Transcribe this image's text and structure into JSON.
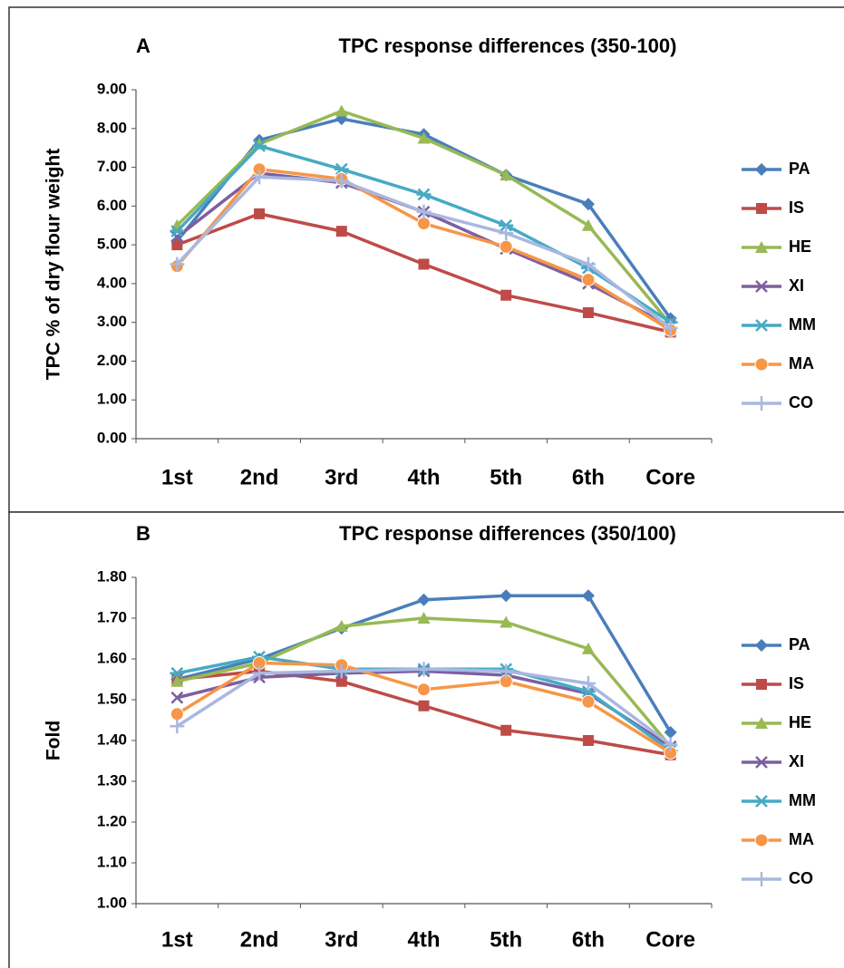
{
  "chart_data": [
    {
      "type": "line",
      "panel_label": "A",
      "title": "TPC response differences (350-100)",
      "y_label": "TPC % of dry flour weight",
      "categories": [
        "1st",
        "2nd",
        "3rd",
        "4th",
        "5th",
        "6th",
        "Core"
      ],
      "ylim": [
        0,
        9
      ],
      "yticks": [
        {
          "value": 0,
          "label": "0.00"
        },
        {
          "value": 1,
          "label": "1.00"
        },
        {
          "value": 2,
          "label": "2.00"
        },
        {
          "value": 3,
          "label": "3.00"
        },
        {
          "value": 4,
          "label": "4.00"
        },
        {
          "value": 5,
          "label": "5.00"
        },
        {
          "value": 6,
          "label": "6.00"
        },
        {
          "value": 7,
          "label": "7.00"
        },
        {
          "value": 8,
          "label": "8.00"
        },
        {
          "value": 9,
          "label": "9.00"
        }
      ],
      "grid": false,
      "legend": "right",
      "series": [
        {
          "name": "PA",
          "color": "#4a7ebb",
          "marker": "diamond",
          "values": [
            5.1,
            7.7,
            8.25,
            7.85,
            6.8,
            6.05,
            3.1
          ]
        },
        {
          "name": "IS",
          "color": "#be4b48",
          "marker": "square",
          "values": [
            5.0,
            5.8,
            5.35,
            4.5,
            3.7,
            3.25,
            2.75
          ]
        },
        {
          "name": "HE",
          "color": "#98b954",
          "marker": "triangle",
          "values": [
            5.5,
            7.6,
            8.45,
            7.75,
            6.8,
            5.5,
            2.95
          ]
        },
        {
          "name": "XI",
          "color": "#7d60a0",
          "marker": "x",
          "values": [
            5.2,
            6.85,
            6.6,
            5.85,
            4.9,
            4.0,
            2.9
          ]
        },
        {
          "name": "MM",
          "color": "#46aac5",
          "marker": "asterisk",
          "values": [
            5.35,
            7.55,
            6.95,
            6.3,
            5.5,
            4.4,
            3.0
          ]
        },
        {
          "name": "MA",
          "color": "#f79646",
          "marker": "circle",
          "values": [
            4.45,
            6.95,
            6.7,
            5.55,
            4.95,
            4.1,
            2.8
          ]
        },
        {
          "name": "CO",
          "color": "#a9b8e0",
          "marker": "plus",
          "values": [
            4.5,
            6.75,
            6.65,
            5.85,
            5.3,
            4.5,
            2.85
          ]
        }
      ]
    },
    {
      "type": "line",
      "panel_label": "B",
      "title": "TPC response differences (350/100)",
      "y_label": "Fold",
      "categories": [
        "1st",
        "2nd",
        "3rd",
        "4th",
        "5th",
        "6th",
        "Core"
      ],
      "ylim": [
        1,
        1.8
      ],
      "yticks": [
        {
          "value": 1,
          "label": "1.00"
        },
        {
          "value": 1.1,
          "label": "1.10"
        },
        {
          "value": 1.2,
          "label": "1.20"
        },
        {
          "value": 1.3,
          "label": "1.30"
        },
        {
          "value": 1.4,
          "label": "1.40"
        },
        {
          "value": 1.5,
          "label": "1.50"
        },
        {
          "value": 1.6,
          "label": "1.60"
        },
        {
          "value": 1.7,
          "label": "1.70"
        },
        {
          "value": 1.8,
          "label": "1.80"
        }
      ],
      "grid": false,
      "legend": "right",
      "series": [
        {
          "name": "PA",
          "color": "#4a7ebb",
          "marker": "diamond",
          "values": [
            1.55,
            1.6,
            1.675,
            1.745,
            1.755,
            1.755,
            1.42
          ]
        },
        {
          "name": "IS",
          "color": "#be4b48",
          "marker": "square",
          "values": [
            1.55,
            1.57,
            1.545,
            1.485,
            1.425,
            1.4,
            1.365
          ]
        },
        {
          "name": "HE",
          "color": "#98b954",
          "marker": "triangle",
          "values": [
            1.545,
            1.59,
            1.68,
            1.7,
            1.69,
            1.625,
            1.385
          ]
        },
        {
          "name": "XI",
          "color": "#7d60a0",
          "marker": "x",
          "values": [
            1.505,
            1.555,
            1.565,
            1.57,
            1.56,
            1.515,
            1.385
          ]
        },
        {
          "name": "MM",
          "color": "#46aac5",
          "marker": "asterisk",
          "values": [
            1.565,
            1.605,
            1.575,
            1.575,
            1.575,
            1.52,
            1.375
          ]
        },
        {
          "name": "MA",
          "color": "#f79646",
          "marker": "circle",
          "values": [
            1.465,
            1.59,
            1.585,
            1.525,
            1.545,
            1.495,
            1.37
          ]
        },
        {
          "name": "CO",
          "color": "#a9b8e0",
          "marker": "plus",
          "values": [
            1.435,
            1.565,
            1.57,
            1.575,
            1.57,
            1.54,
            1.39
          ]
        }
      ]
    }
  ]
}
